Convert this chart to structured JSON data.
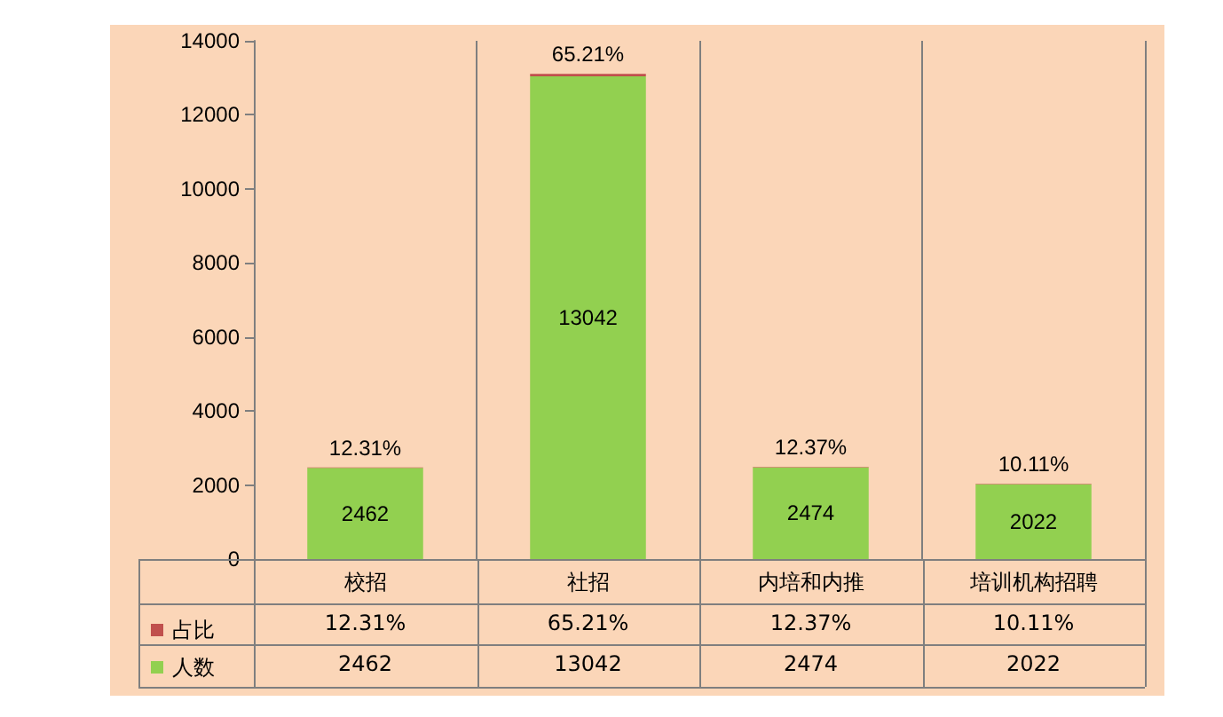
{
  "chart_data": {
    "type": "bar",
    "categories": [
      "校招",
      "社招",
      "内培和内推",
      "培训机构招聘"
    ],
    "stacked": true,
    "data_labels": true,
    "grid": "x",
    "legend": "bottom",
    "ylim": [
      0,
      14000
    ],
    "yticks": [
      0,
      2000,
      4000,
      6000,
      8000,
      10000,
      12000,
      14000
    ],
    "series": [
      {
        "name": "人数",
        "color": "#92d050",
        "values": [
          2462,
          13042,
          2474,
          2022
        ],
        "value_labels": [
          "2462",
          "13042",
          "2474",
          "2022"
        ]
      },
      {
        "name": "占比",
        "color": "#c0504d",
        "values": [
          12.31,
          65.21,
          12.37,
          10.11
        ],
        "value_labels": [
          "12.31%",
          "65.21%",
          "12.37%",
          "10.11%"
        ]
      }
    ]
  }
}
